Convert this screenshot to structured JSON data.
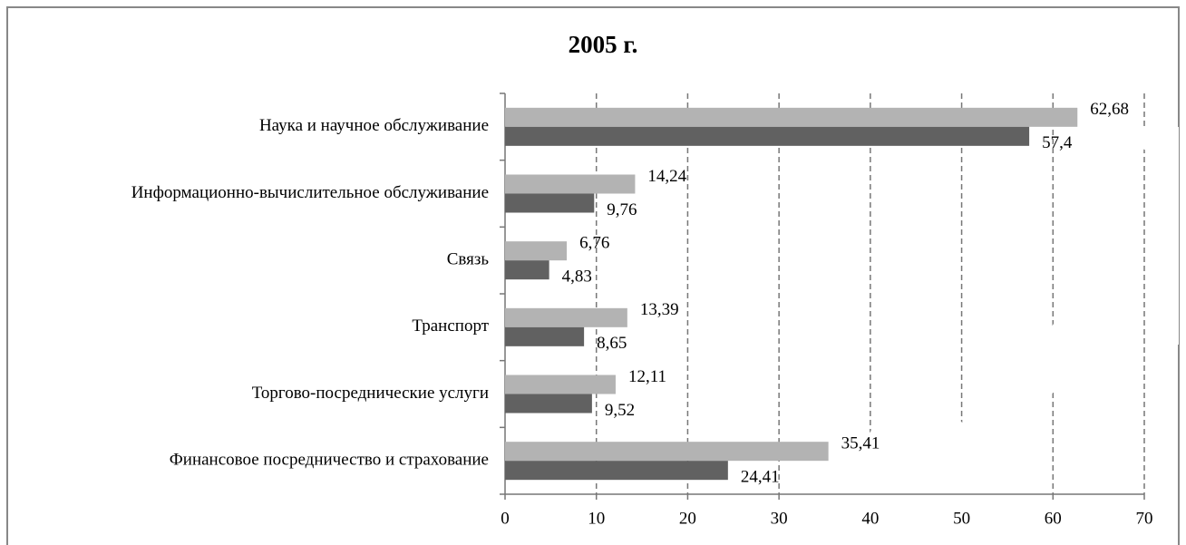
{
  "chart_data": {
    "type": "bar",
    "orientation": "horizontal",
    "title": "2005 г.",
    "categories": [
      "Наука и научное обслуживание",
      "Информационно-вычислительное обслуживание",
      "Связь",
      "Транспорт",
      "Торгово-посреднические услуги",
      "Финансовое посредничество и страхование"
    ],
    "series": [
      {
        "color": "#b3b3b3",
        "values": [
          62.68,
          14.24,
          6.76,
          13.39,
          12.11,
          35.41
        ],
        "value_labels": [
          "62,68",
          "14,24",
          "6,76",
          "13,39",
          "12,11",
          "35,41"
        ]
      },
      {
        "color": "#616161",
        "values": [
          57.4,
          9.76,
          4.83,
          8.65,
          9.52,
          24.41
        ],
        "value_labels": [
          "57,4",
          "9,76",
          "4,83",
          "8,65",
          "9,52",
          "24,41"
        ]
      }
    ],
    "xlim": [
      0,
      70
    ],
    "xticks": [
      0,
      10,
      20,
      30,
      40,
      50,
      60,
      70
    ],
    "grid": true
  }
}
